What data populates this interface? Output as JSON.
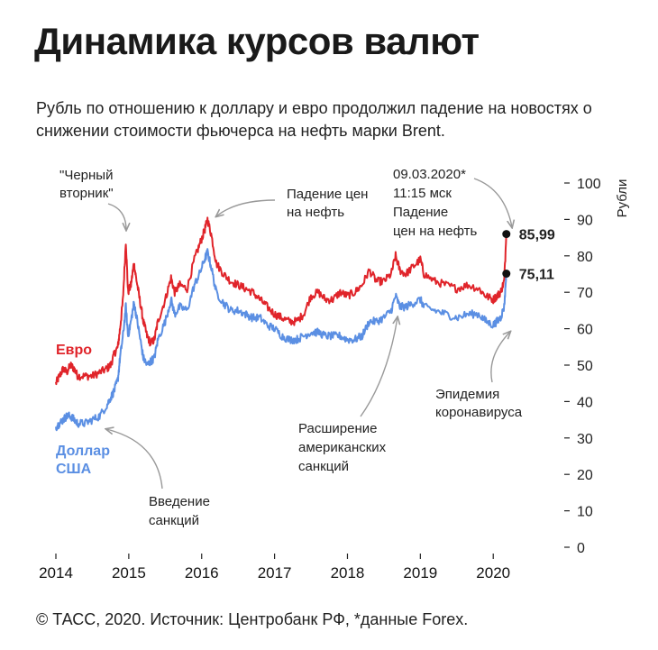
{
  "header": {
    "title": "Динамика курсов валют",
    "subtitle": "Рубль по отношению к доллару и евро продолжил падение на новостях о снижении стоимости фьючерса на нефть марки Brent."
  },
  "footer": {
    "source": "© ТАСС, 2020. Источник: Центробанк РФ, *данные Forex."
  },
  "chart_data": {
    "type": "line",
    "ylabel": "Рубли",
    "ylim": [
      0,
      100
    ],
    "yticks": [
      0,
      10,
      20,
      30,
      40,
      50,
      60,
      70,
      80,
      90,
      100
    ],
    "xlim": [
      2014,
      2020.9
    ],
    "xticks": [
      "2014",
      "2015",
      "2016",
      "2017",
      "2018",
      "2019",
      "2020"
    ],
    "grid": false,
    "colors": {
      "euro": "#e0242a",
      "usd": "#5b8fe3",
      "ink": "#111111",
      "muted": "#999999"
    },
    "series": [
      {
        "name": "Евро",
        "color": "#e0242a",
        "points": [
          [
            2014.0,
            45
          ],
          [
            2014.05,
            47
          ],
          [
            2014.1,
            49
          ],
          [
            2014.15,
            48
          ],
          [
            2014.2,
            50
          ],
          [
            2014.25,
            49
          ],
          [
            2014.3,
            47
          ],
          [
            2014.4,
            47
          ],
          [
            2014.5,
            47
          ],
          [
            2014.6,
            48
          ],
          [
            2014.7,
            49
          ],
          [
            2014.75,
            50
          ],
          [
            2014.8,
            53
          ],
          [
            2014.85,
            55
          ],
          [
            2014.88,
            60
          ],
          [
            2014.92,
            68
          ],
          [
            2014.96,
            84
          ],
          [
            2014.99,
            70
          ],
          [
            2015.03,
            72
          ],
          [
            2015.07,
            78
          ],
          [
            2015.1,
            74
          ],
          [
            2015.15,
            68
          ],
          [
            2015.2,
            62
          ],
          [
            2015.25,
            58
          ],
          [
            2015.3,
            56
          ],
          [
            2015.35,
            57
          ],
          [
            2015.4,
            62
          ],
          [
            2015.5,
            68
          ],
          [
            2015.58,
            74
          ],
          [
            2015.63,
            70
          ],
          [
            2015.7,
            72
          ],
          [
            2015.8,
            71
          ],
          [
            2015.9,
            79
          ],
          [
            2015.97,
            83
          ],
          [
            2016.04,
            87
          ],
          [
            2016.08,
            90
          ],
          [
            2016.13,
            86
          ],
          [
            2016.2,
            78
          ],
          [
            2016.3,
            75
          ],
          [
            2016.4,
            73
          ],
          [
            2016.5,
            72
          ],
          [
            2016.6,
            71
          ],
          [
            2016.7,
            70
          ],
          [
            2016.8,
            68
          ],
          [
            2016.9,
            66
          ],
          [
            2017.0,
            64
          ],
          [
            2017.1,
            63
          ],
          [
            2017.2,
            62
          ],
          [
            2017.3,
            62
          ],
          [
            2017.4,
            64
          ],
          [
            2017.5,
            69
          ],
          [
            2017.6,
            70
          ],
          [
            2017.7,
            68
          ],
          [
            2017.8,
            68
          ],
          [
            2017.9,
            70
          ],
          [
            2018.0,
            69
          ],
          [
            2018.1,
            70
          ],
          [
            2018.2,
            72
          ],
          [
            2018.3,
            76
          ],
          [
            2018.4,
            73
          ],
          [
            2018.5,
            73
          ],
          [
            2018.6,
            75
          ],
          [
            2018.66,
            80
          ],
          [
            2018.72,
            76
          ],
          [
            2018.8,
            75
          ],
          [
            2018.9,
            77
          ],
          [
            2019.0,
            79
          ],
          [
            2019.05,
            75
          ],
          [
            2019.2,
            73
          ],
          [
            2019.35,
            72
          ],
          [
            2019.5,
            71
          ],
          [
            2019.65,
            72
          ],
          [
            2019.8,
            71
          ],
          [
            2019.9,
            69
          ],
          [
            2020.0,
            68
          ],
          [
            2020.05,
            69
          ],
          [
            2020.1,
            70
          ],
          [
            2020.15,
            73
          ],
          [
            2020.18,
            86
          ]
        ]
      },
      {
        "name": "Доллар США",
        "color": "#5b8fe3",
        "points": [
          [
            2014.0,
            33
          ],
          [
            2014.05,
            34
          ],
          [
            2014.1,
            35
          ],
          [
            2014.15,
            36
          ],
          [
            2014.2,
            36
          ],
          [
            2014.25,
            35
          ],
          [
            2014.3,
            34
          ],
          [
            2014.4,
            34
          ],
          [
            2014.5,
            35
          ],
          [
            2014.6,
            36
          ],
          [
            2014.7,
            39
          ],
          [
            2014.75,
            41
          ],
          [
            2014.8,
            43
          ],
          [
            2014.85,
            46
          ],
          [
            2014.88,
            52
          ],
          [
            2014.92,
            58
          ],
          [
            2014.96,
            66
          ],
          [
            2014.99,
            58
          ],
          [
            2015.03,
            62
          ],
          [
            2015.07,
            67
          ],
          [
            2015.1,
            64
          ],
          [
            2015.15,
            58
          ],
          [
            2015.2,
            52
          ],
          [
            2015.25,
            50
          ],
          [
            2015.3,
            51
          ],
          [
            2015.35,
            52
          ],
          [
            2015.4,
            57
          ],
          [
            2015.5,
            62
          ],
          [
            2015.58,
            68
          ],
          [
            2015.63,
            64
          ],
          [
            2015.7,
            66
          ],
          [
            2015.8,
            65
          ],
          [
            2015.9,
            72
          ],
          [
            2015.97,
            75
          ],
          [
            2016.04,
            79
          ],
          [
            2016.08,
            81
          ],
          [
            2016.13,
            77
          ],
          [
            2016.2,
            70
          ],
          [
            2016.3,
            67
          ],
          [
            2016.4,
            65
          ],
          [
            2016.5,
            65
          ],
          [
            2016.6,
            64
          ],
          [
            2016.7,
            63
          ],
          [
            2016.8,
            63
          ],
          [
            2016.9,
            61
          ],
          [
            2017.0,
            60
          ],
          [
            2017.1,
            58
          ],
          [
            2017.2,
            57
          ],
          [
            2017.3,
            57
          ],
          [
            2017.4,
            58
          ],
          [
            2017.5,
            59
          ],
          [
            2017.6,
            59
          ],
          [
            2017.7,
            58
          ],
          [
            2017.8,
            58
          ],
          [
            2017.9,
            58
          ],
          [
            2018.0,
            57
          ],
          [
            2018.1,
            57
          ],
          [
            2018.2,
            58
          ],
          [
            2018.3,
            62
          ],
          [
            2018.4,
            62
          ],
          [
            2018.5,
            63
          ],
          [
            2018.6,
            65
          ],
          [
            2018.66,
            69
          ],
          [
            2018.72,
            66
          ],
          [
            2018.8,
            66
          ],
          [
            2018.9,
            67
          ],
          [
            2019.0,
            68
          ],
          [
            2019.05,
            66
          ],
          [
            2019.2,
            65
          ],
          [
            2019.35,
            64
          ],
          [
            2019.5,
            63
          ],
          [
            2019.65,
            64
          ],
          [
            2019.8,
            64
          ],
          [
            2019.9,
            62
          ],
          [
            2020.0,
            61
          ],
          [
            2020.05,
            62
          ],
          [
            2020.1,
            63
          ],
          [
            2020.15,
            66
          ],
          [
            2020.18,
            75
          ]
        ]
      }
    ],
    "series_labels": [
      {
        "name": "Евро",
        "text": "Евро"
      },
      {
        "name": "Доллар США",
        "lines": [
          "Доллар",
          "США"
        ]
      }
    ],
    "markers": [
      {
        "x": 2020.18,
        "y": 85.99,
        "label": "85,99"
      },
      {
        "x": 2020.18,
        "y": 75.11,
        "label": "75,11"
      }
    ],
    "annotations": [
      {
        "id": "black-tuesday",
        "lines": [
          "\"Черный",
          "вторник\""
        ]
      },
      {
        "id": "oil-drop-2016",
        "lines": [
          "Падение цен",
          "на нефть"
        ]
      },
      {
        "id": "oil-drop-2020",
        "lines": [
          "09.03.2020*",
          "11:15 мск",
          "Падение",
          "цен на нефть"
        ]
      },
      {
        "id": "sanctions",
        "lines": [
          "Введение",
          "санкций"
        ]
      },
      {
        "id": "us-sanctions",
        "lines": [
          "Расширение",
          "американских",
          "санкций"
        ]
      },
      {
        "id": "epidemic",
        "lines": [
          "Эпидемия",
          "коронавируса"
        ]
      }
    ]
  }
}
